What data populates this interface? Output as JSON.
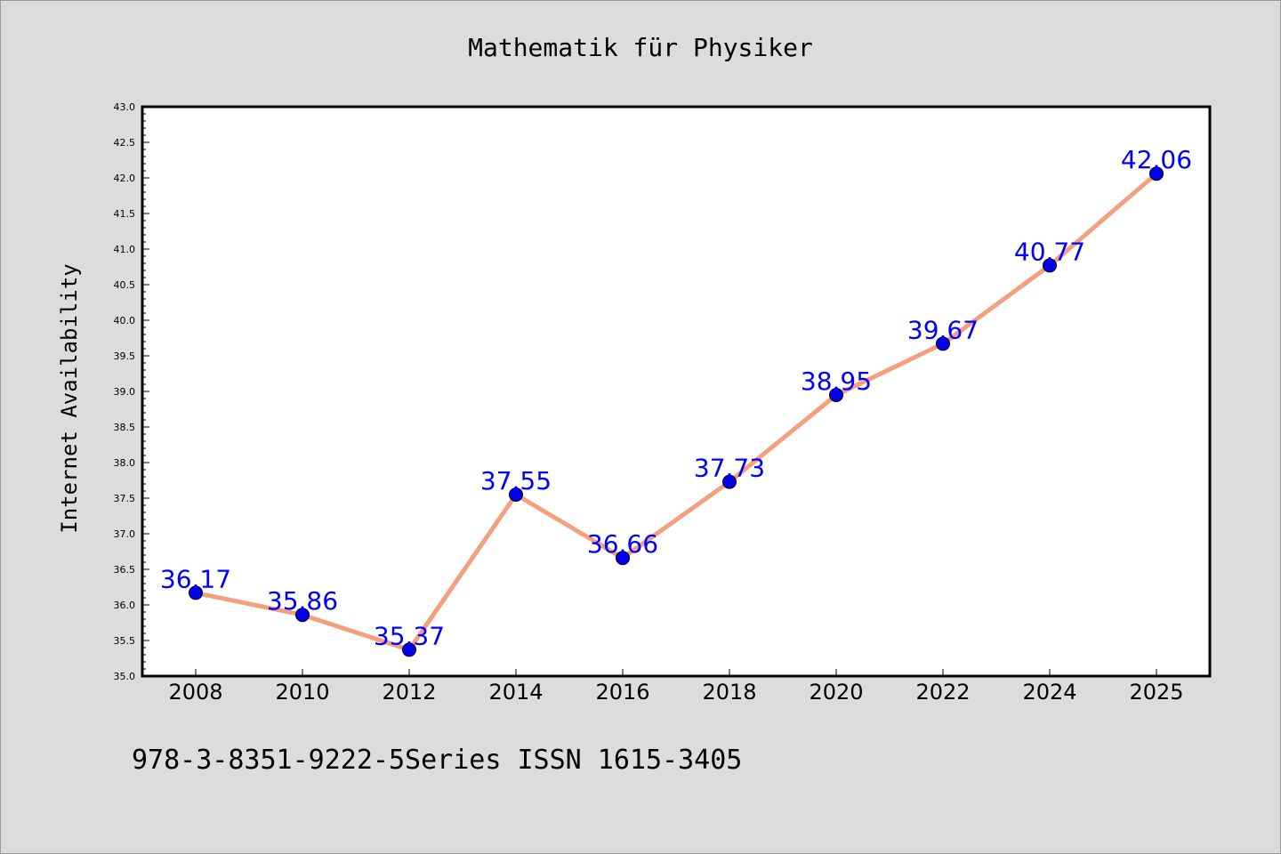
{
  "chart_data": {
    "type": "line",
    "title": "Mathematik für Physiker",
    "xlabel": "",
    "ylabel": "Internet Availability",
    "categories": [
      "2008",
      "2010",
      "2012",
      "2014",
      "2016",
      "2018",
      "2020",
      "2022",
      "2024",
      "2025"
    ],
    "series": [
      {
        "values": [
          36.17,
          35.86,
          35.37,
          37.55,
          36.66,
          37.73,
          38.95,
          39.67,
          40.77,
          42.06
        ]
      }
    ],
    "data_labels": [
      "36.17",
      "35.86",
      "35.37",
      "37.55",
      "36.66",
      "37.73",
      "38.95",
      "39.67",
      "40.77",
      "42.06"
    ],
    "ylim": [
      35.0,
      43.0
    ],
    "yticks": [
      "35.0",
      "35.5",
      "36.0",
      "36.5",
      "37.0",
      "37.5",
      "38.0",
      "38.5",
      "39.0",
      "39.5",
      "40.0",
      "40.5",
      "41.0",
      "41.5",
      "42.0",
      "42.5",
      "43.0"
    ],
    "grid": false,
    "legend": "none",
    "line_color": "#f4a07e",
    "marker_color": "#0000ee",
    "label_color": "#0000ff"
  },
  "footer": {
    "text": "978-3-8351-9222-5Series ISSN 1615-3405"
  },
  "colors": {
    "background": "#dcdcdc",
    "plot_background": "#ffffff",
    "axis": "#000000"
  }
}
